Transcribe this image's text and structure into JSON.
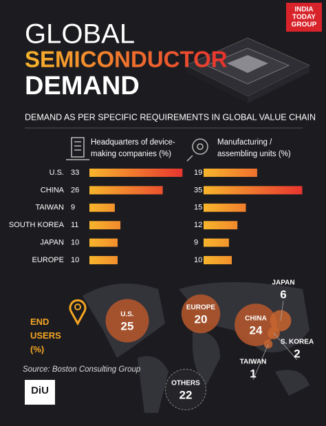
{
  "header": {
    "title": [
      "GLOBAL",
      "SEMICONDUCTOR",
      "DEMAND"
    ],
    "brand": [
      "INDIA",
      "TODAY",
      "GROUP"
    ]
  },
  "chart_data": [
    {
      "type": "bar",
      "orientation": "horizontal",
      "subtitle": "DEMAND AS PER SPECIFIC REQUIREMENTS IN GLOBAL VALUE CHAIN",
      "categories": [
        "U.S.",
        "CHINA",
        "TAIWAN",
        "SOUTH KOREA",
        "JAPAN",
        "EUROPE"
      ],
      "series": [
        {
          "name": "Headquarters of device-making companies (%)",
          "color": "#e8312f",
          "values": [
            33,
            26,
            9,
            11,
            10,
            10
          ]
        },
        {
          "name": "Manufacturing / assembling units (%)",
          "color": "#e8312f",
          "values": [
            19,
            35,
            15,
            12,
            9,
            10
          ]
        }
      ]
    },
    {
      "type": "bubble",
      "title": "END USERS (%)",
      "categories": [
        "U.S.",
        "EUROPE",
        "CHINA",
        "JAPAN",
        "S. KOREA",
        "TAIWAN",
        "OTHERS"
      ],
      "values": [
        25,
        20,
        24,
        6,
        2,
        1,
        22
      ],
      "colors": [
        "#b8582c",
        "#b8582c",
        "#b8582c",
        "#c8652f",
        "#c8652f",
        "#c8652f",
        "#26262b"
      ]
    }
  ],
  "source": "Source: Boston Consulting Group",
  "logo": "DiU"
}
